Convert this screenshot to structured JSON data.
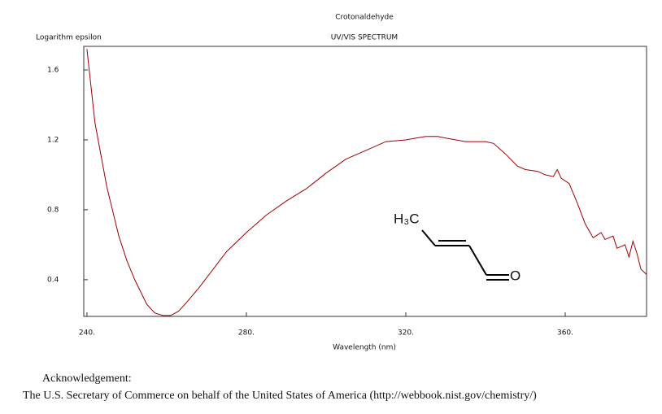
{
  "chart_data": {
    "type": "line",
    "title": "Crotonaldehyde",
    "subtitle": "UV/VIS SPECTRUM",
    "ylabel": "Logarithm epsilon",
    "xlabel": "Wavelength (nm)",
    "x": [
      240,
      242,
      245,
      248,
      250,
      252,
      255,
      257,
      259,
      261,
      263,
      265,
      268,
      270,
      275,
      280,
      285,
      290,
      295,
      300,
      305,
      310,
      315,
      320,
      325,
      328,
      330,
      335,
      340,
      342,
      345,
      348,
      350,
      353,
      355,
      357,
      358,
      359,
      361,
      363,
      365,
      367,
      369,
      370,
      372,
      373,
      375,
      376,
      377,
      378,
      379,
      380.4
    ],
    "series": [
      {
        "name": "Crotonaldehyde",
        "color": "#a00000",
        "values": [
          1.72,
          1.3,
          0.93,
          0.65,
          0.51,
          0.4,
          0.26,
          0.21,
          0.195,
          0.195,
          0.22,
          0.27,
          0.35,
          0.41,
          0.56,
          0.67,
          0.77,
          0.85,
          0.92,
          1.01,
          1.09,
          1.14,
          1.19,
          1.2,
          1.22,
          1.22,
          1.21,
          1.19,
          1.19,
          1.18,
          1.12,
          1.05,
          1.03,
          1.02,
          1.0,
          0.99,
          1.03,
          0.98,
          0.95,
          0.84,
          0.72,
          0.64,
          0.67,
          0.63,
          0.65,
          0.58,
          0.6,
          0.53,
          0.62,
          0.55,
          0.46,
          0.43
        ]
      }
    ],
    "xlim": [
      239.2,
      380.4
    ],
    "ylim": [
      0.19,
      1.735
    ],
    "xticks": [
      {
        "value": 240,
        "label": "240."
      },
      {
        "value": 280,
        "label": "280."
      },
      {
        "value": 320,
        "label": "320."
      },
      {
        "value": 360,
        "label": "360."
      }
    ],
    "yticks": [
      0.4,
      0.8,
      1.2,
      1.6
    ],
    "structure_labels": [
      "H₃C",
      "O"
    ]
  },
  "footer": {
    "heading": "Acknowledgement:",
    "text": "The U.S. Secretary of Commerce on behalf of the United States of America (http://webbook.nist.gov/chemistry/)"
  }
}
